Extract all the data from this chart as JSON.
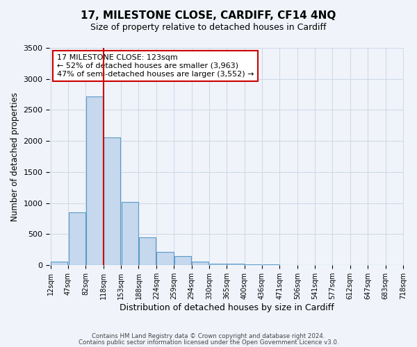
{
  "title": "17, MILESTONE CLOSE, CARDIFF, CF14 4NQ",
  "subtitle": "Size of property relative to detached houses in Cardiff",
  "xlabel": "Distribution of detached houses by size in Cardiff",
  "ylabel": "Number of detached properties",
  "bin_labels": [
    "12sqm",
    "47sqm",
    "82sqm",
    "118sqm",
    "153sqm",
    "188sqm",
    "224sqm",
    "259sqm",
    "294sqm",
    "330sqm",
    "365sqm",
    "400sqm",
    "436sqm",
    "471sqm",
    "506sqm",
    "541sqm",
    "577sqm",
    "612sqm",
    "647sqm",
    "683sqm",
    "718sqm"
  ],
  "bar_heights": [
    55,
    855,
    2720,
    2060,
    1020,
    455,
    210,
    145,
    55,
    30,
    20,
    15,
    10,
    5,
    5,
    0,
    0,
    0,
    0,
    0
  ],
  "bar_color": "#c5d8ed",
  "bar_edge_color": "#5a9ac8",
  "vline_color": "#cc0000",
  "vline_position": 3,
  "annotation_title": "17 MILESTONE CLOSE: 123sqm",
  "annotation_line1": "← 52% of detached houses are smaller (3,963)",
  "annotation_line2": "47% of semi-detached houses are larger (3,552) →",
  "annotation_box_color": "#ffffff",
  "annotation_box_edge": "#cc0000",
  "ylim": [
    0,
    3500
  ],
  "yticks": [
    0,
    500,
    1000,
    1500,
    2000,
    2500,
    3000,
    3500
  ],
  "footer1": "Contains HM Land Registry data © Crown copyright and database right 2024.",
  "footer2": "Contains public sector information licensed under the Open Government Licence v3.0.",
  "grid_color": "#d0d8e8",
  "background_color": "#f0f4fa"
}
